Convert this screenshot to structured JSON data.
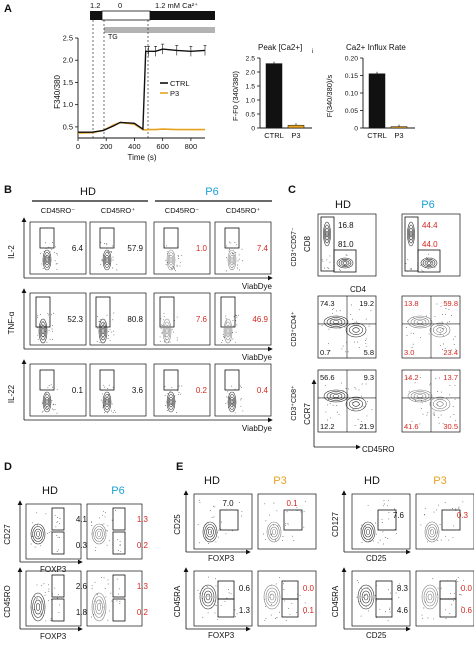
{
  "panels": {
    "A": "A",
    "B": "B",
    "C": "C",
    "D": "D",
    "E": "E"
  },
  "panelA": {
    "protocol": {
      "seg1": "1.2",
      "seg2": "0",
      "seg3": "1.2 mM Ca²⁺",
      "tg": "TG"
    },
    "trace": {
      "ylabel": "F340/380",
      "xlabel": "Time (s)",
      "xticks": [
        "0",
        "200",
        "400",
        "600",
        "800"
      ],
      "yticks": [
        "0.5",
        "1.0",
        "1.5",
        "2.0",
        "2.5"
      ],
      "legend": [
        "CTRL",
        "P3"
      ],
      "colors": {
        "CTRL": "#111111",
        "P3": "#e6a21f"
      }
    },
    "peak": {
      "title": "Peak [Ca2+]",
      "title_sub": "i",
      "ylabel": "F-F0 (340/380)",
      "yticks": [
        "0",
        "0.5",
        "1.0",
        "1.5",
        "2.0",
        "2.5"
      ],
      "cats": [
        "CTRL",
        "P3"
      ]
    },
    "influx": {
      "title": "Ca2+ Influx Rate",
      "ylabel": "F(340/380)/s",
      "yticks": [
        "0",
        "0.05",
        "0.10",
        "0.15",
        "0.20"
      ],
      "cats": [
        "CTRL",
        "P3"
      ]
    }
  },
  "chart_data": [
    {
      "type": "line",
      "x": [
        0,
        100,
        180,
        250,
        300,
        400,
        460,
        480,
        500,
        550,
        600,
        700,
        800,
        900
      ],
      "series": [
        {
          "name": "CTRL",
          "values": [
            0.38,
            0.38,
            0.42,
            0.52,
            0.6,
            0.58,
            0.45,
            2.2,
            2.2,
            2.2,
            2.25,
            2.22,
            2.2,
            2.22
          ]
        },
        {
          "name": "P3",
          "values": [
            0.36,
            0.37,
            0.42,
            0.54,
            0.6,
            0.56,
            0.44,
            0.43,
            0.44,
            0.44,
            0.45,
            0.44,
            0.44,
            0.44
          ]
        }
      ],
      "xlabel": "Time (s)",
      "ylabel": "F340/380",
      "xlim": [
        0,
        900
      ],
      "ylim": [
        0.25,
        2.5
      ]
    },
    {
      "type": "bar",
      "title": "Peak [Ca2+]i",
      "categories": [
        "CTRL",
        "P3"
      ],
      "values": [
        2.3,
        0.1
      ],
      "ylabel": "F-F0 (340/380)",
      "ylim": [
        0,
        2.5
      ]
    },
    {
      "type": "bar",
      "title": "Ca2+ Influx Rate",
      "categories": [
        "CTRL",
        "P3"
      ],
      "values": [
        0.155,
        0.004
      ],
      "ylabel": "F(340/380)/s",
      "ylim": [
        0,
        0.2
      ]
    }
  ],
  "panelB": {
    "groups": [
      "HD",
      "P6"
    ],
    "cols": [
      "CD45RO⁻",
      "CD45RO⁺",
      "CD45RO⁻",
      "CD45RO⁺"
    ],
    "xlabel": "ViabDye",
    "rows": [
      {
        "ylabel": "IL-2",
        "values": [
          "6.4",
          "57.9",
          "1.0",
          "7.4"
        ]
      },
      {
        "ylabel": "TNF-α",
        "values": [
          "52.3",
          "80.8",
          "7.6",
          "46.9"
        ]
      },
      {
        "ylabel": "IL-22",
        "values": [
          "0.1",
          "3.6",
          "0.2",
          "0.4"
        ]
      }
    ]
  },
  "panelC": {
    "groups": [
      "HD",
      "P6"
    ],
    "row1": {
      "ylabel_outer": "CD3⁺CD57⁻",
      "ylabel": "CD8",
      "xlabel": "CD4",
      "hd": [
        "16.8",
        "81.0"
      ],
      "p6": [
        "44.4",
        "44.0"
      ]
    },
    "row2": {
      "ylabel_outer": "CD3⁺CD4⁺",
      "hd": [
        "74.3",
        "19.2",
        "0.7",
        "5.8"
      ],
      "p6": [
        "13.8",
        "59.8",
        "3.0",
        "23.4"
      ]
    },
    "row3": {
      "ylabel_outer": "CD3⁺CD8⁺",
      "ylabel": "CCR7",
      "xlabel": "CD45RO",
      "hd": [
        "56.6",
        "9.3",
        "12.2",
        "21.9"
      ],
      "p6": [
        "14.2",
        "13.7",
        "41.6",
        "30.5"
      ]
    }
  },
  "panelD": {
    "groups": [
      "HD",
      "P6"
    ],
    "row1": {
      "ylabel": "CD27",
      "xlabel": "FOXP3",
      "hd": [
        "4.1",
        "0.3"
      ],
      "p6": [
        "1.3",
        "0.2"
      ]
    },
    "row2": {
      "ylabel": "CD45RO",
      "xlabel": "FOXP3",
      "hd": [
        "2.6",
        "1.8"
      ],
      "p6": [
        "1.3",
        "0.2"
      ]
    }
  },
  "panelE": {
    "groups": [
      "HD",
      "P3",
      "HD",
      "P3"
    ],
    "left": {
      "row1": {
        "ylabel": "CD25",
        "xlabel": "FOXP3",
        "hd": "7.0",
        "p3": "0.1"
      },
      "row2": {
        "ylabel": "CD45RA",
        "xlabel": "FOXP3",
        "hd": [
          "0.6",
          "1.3"
        ],
        "p3": [
          "0.0",
          "0.1"
        ]
      }
    },
    "right": {
      "row1": {
        "ylabel": "CD127",
        "xlabel": "CD25",
        "hd": "7.6",
        "p3": "0.3"
      },
      "row2": {
        "ylabel": "CD45RA",
        "xlabel": "CD25",
        "hd": [
          "8.3",
          "4.6"
        ],
        "p3": [
          "0.0",
          "0.6"
        ]
      }
    }
  }
}
